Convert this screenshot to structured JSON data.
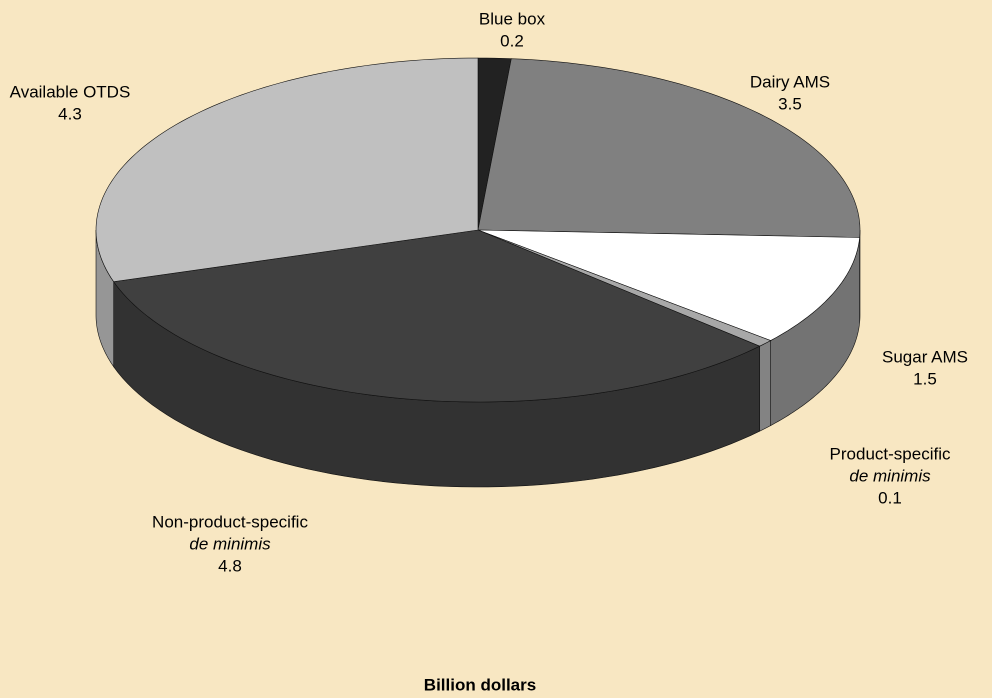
{
  "chart_data": {
    "type": "pie3d",
    "xlabel": "Billion dollars",
    "categories": [
      [
        "Blue box"
      ],
      [
        "Dairy AMS"
      ],
      [
        "Sugar AMS"
      ],
      [
        "Product-specific",
        "de minimis"
      ],
      [
        "Non-product-specific",
        "de minimis"
      ],
      [
        "Available OTDS"
      ]
    ],
    "values": [
      0.2,
      3.5,
      1.5,
      0.1,
      4.8,
      4.3
    ],
    "colors": [
      "#222222",
      "#808080",
      "#ffffff",
      "#a8a8a8",
      "#404040",
      "#c0c0c0"
    ]
  }
}
